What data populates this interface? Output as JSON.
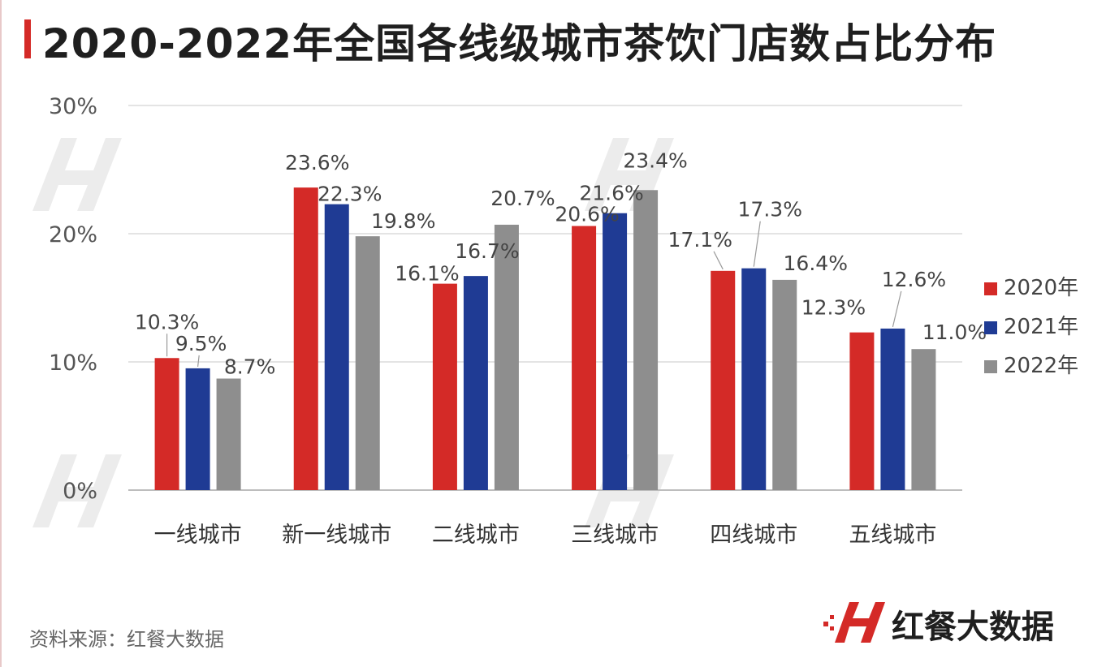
{
  "title": "2020-2022年全国各线级城市茶饮门店数占比分布",
  "source": "资料来源：红餐大数据",
  "brand": {
    "name": "红餐大数据",
    "accent": "#d42a27"
  },
  "chart_data": {
    "type": "bar",
    "title": "2020-2022年全国各线级城市茶饮门店数占比分布",
    "categories": [
      "一线城市",
      "新一线城市",
      "二线城市",
      "三线城市",
      "四线城市",
      "五线城市"
    ],
    "series": [
      {
        "name": "2020年",
        "color": "#d42a27",
        "values": [
          10.3,
          23.6,
          16.1,
          20.6,
          17.1,
          12.3
        ],
        "labels": [
          "10.3%",
          "23.6%",
          "16.1%",
          "20.6%",
          "17.1%",
          "12.3%"
        ]
      },
      {
        "name": "2021年",
        "color": "#1f3b94",
        "values": [
          9.5,
          22.3,
          16.7,
          21.6,
          17.3,
          12.6
        ],
        "labels": [
          "9.5%",
          "22.3%",
          "16.7%",
          "21.6%",
          "17.3%",
          "12.6%"
        ]
      },
      {
        "name": "2022年",
        "color": "#8e8e8e",
        "values": [
          8.7,
          19.8,
          20.7,
          23.4,
          16.4,
          11.0
        ],
        "labels": [
          "8.7%",
          "19.8%",
          "20.7%",
          "23.4%",
          "16.4%",
          "11.0%"
        ]
      }
    ],
    "ylim": [
      0,
      30
    ],
    "yticks": [
      "0%",
      "10%",
      "20%",
      "30%"
    ],
    "xlabel": "",
    "ylabel": "",
    "legend": "right",
    "grid": true
  }
}
